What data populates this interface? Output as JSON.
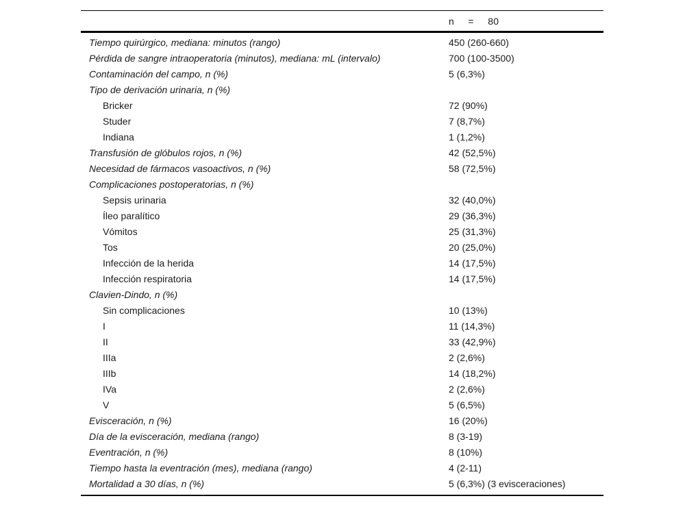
{
  "table": {
    "header": {
      "label": "",
      "value": "n     =     80"
    },
    "rows": [
      {
        "label": "Tiempo quirúrgico, mediana: minutos (rango)",
        "value": "450 (260-660)",
        "style": "cat"
      },
      {
        "label": "Pérdida de sangre intraoperatoria (minutos), mediana: mL (intervalo)",
        "value": "700 (100-3500)",
        "style": "cat"
      },
      {
        "label": "Contaminación del campo, n (%)",
        "value": "5 (6,3%)",
        "style": "cat"
      },
      {
        "label": "Tipo de derivación urinaria, n (%)",
        "value": "",
        "style": "cat"
      },
      {
        "label": "Bricker",
        "value": "72 (90%)",
        "style": "sub"
      },
      {
        "label": "Studer",
        "value": "7 (8,7%)",
        "style": "sub"
      },
      {
        "label": "Indiana",
        "value": "1 (1,2%)",
        "style": "sub"
      },
      {
        "label": "Transfusión de glóbulos rojos, n (%)",
        "value": "42 (52,5%)",
        "style": "cat"
      },
      {
        "label": "Necesidad de fármacos vasoactivos, n (%)",
        "value": "58 (72,5%)",
        "style": "cat"
      },
      {
        "label": "Complicaciones postoperatorias, n (%)",
        "value": "",
        "style": "cat"
      },
      {
        "label": "Sepsis urinaria",
        "value": "32 (40,0%)",
        "style": "sub"
      },
      {
        "label": "Íleo paralítico",
        "value": "29 (36,3%)",
        "style": "sub"
      },
      {
        "label": "Vómitos",
        "value": "25 (31,3%)",
        "style": "sub"
      },
      {
        "label": "Tos",
        "value": "20 (25,0%)",
        "style": "sub"
      },
      {
        "label": "Infección de la herida",
        "value": "14 (17,5%)",
        "style": "sub"
      },
      {
        "label": "Infección respiratoria",
        "value": "14 (17,5%)",
        "style": "sub"
      },
      {
        "label": "Clavien-Dindo, n (%)",
        "value": "",
        "style": "cat"
      },
      {
        "label": "Sin complicaciones",
        "value": "10 (13%)",
        "style": "sub"
      },
      {
        "label": "I",
        "value": "11 (14,3%)",
        "style": "sub"
      },
      {
        "label": "II",
        "value": "33 (42,9%)",
        "style": "sub"
      },
      {
        "label": "IIIa",
        "value": "2 (2,6%)",
        "style": "sub"
      },
      {
        "label": "IIIb",
        "value": "14 (18,2%)",
        "style": "sub"
      },
      {
        "label": "IVa",
        "value": "2 (2,6%)",
        "style": "sub"
      },
      {
        "label": "V",
        "value": "5 (6,5%)",
        "style": "sub"
      },
      {
        "label": "Evisceración, n (%)",
        "value": "16 (20%)",
        "style": "cat"
      },
      {
        "label": "Día de la evisceración, mediana (rango)",
        "value": "8 (3-19)",
        "style": "cat"
      },
      {
        "label": "Eventración, n (%)",
        "value": "8 (10%)",
        "style": "cat"
      },
      {
        "label": "Tiempo hasta la eventración (mes), mediana (rango)",
        "value": "4 (2-11)",
        "style": "cat"
      },
      {
        "label": "Mortalidad a 30 días, n (%)",
        "value": "5 (6,3%) (3 evisceraciones)",
        "style": "cat"
      }
    ]
  }
}
